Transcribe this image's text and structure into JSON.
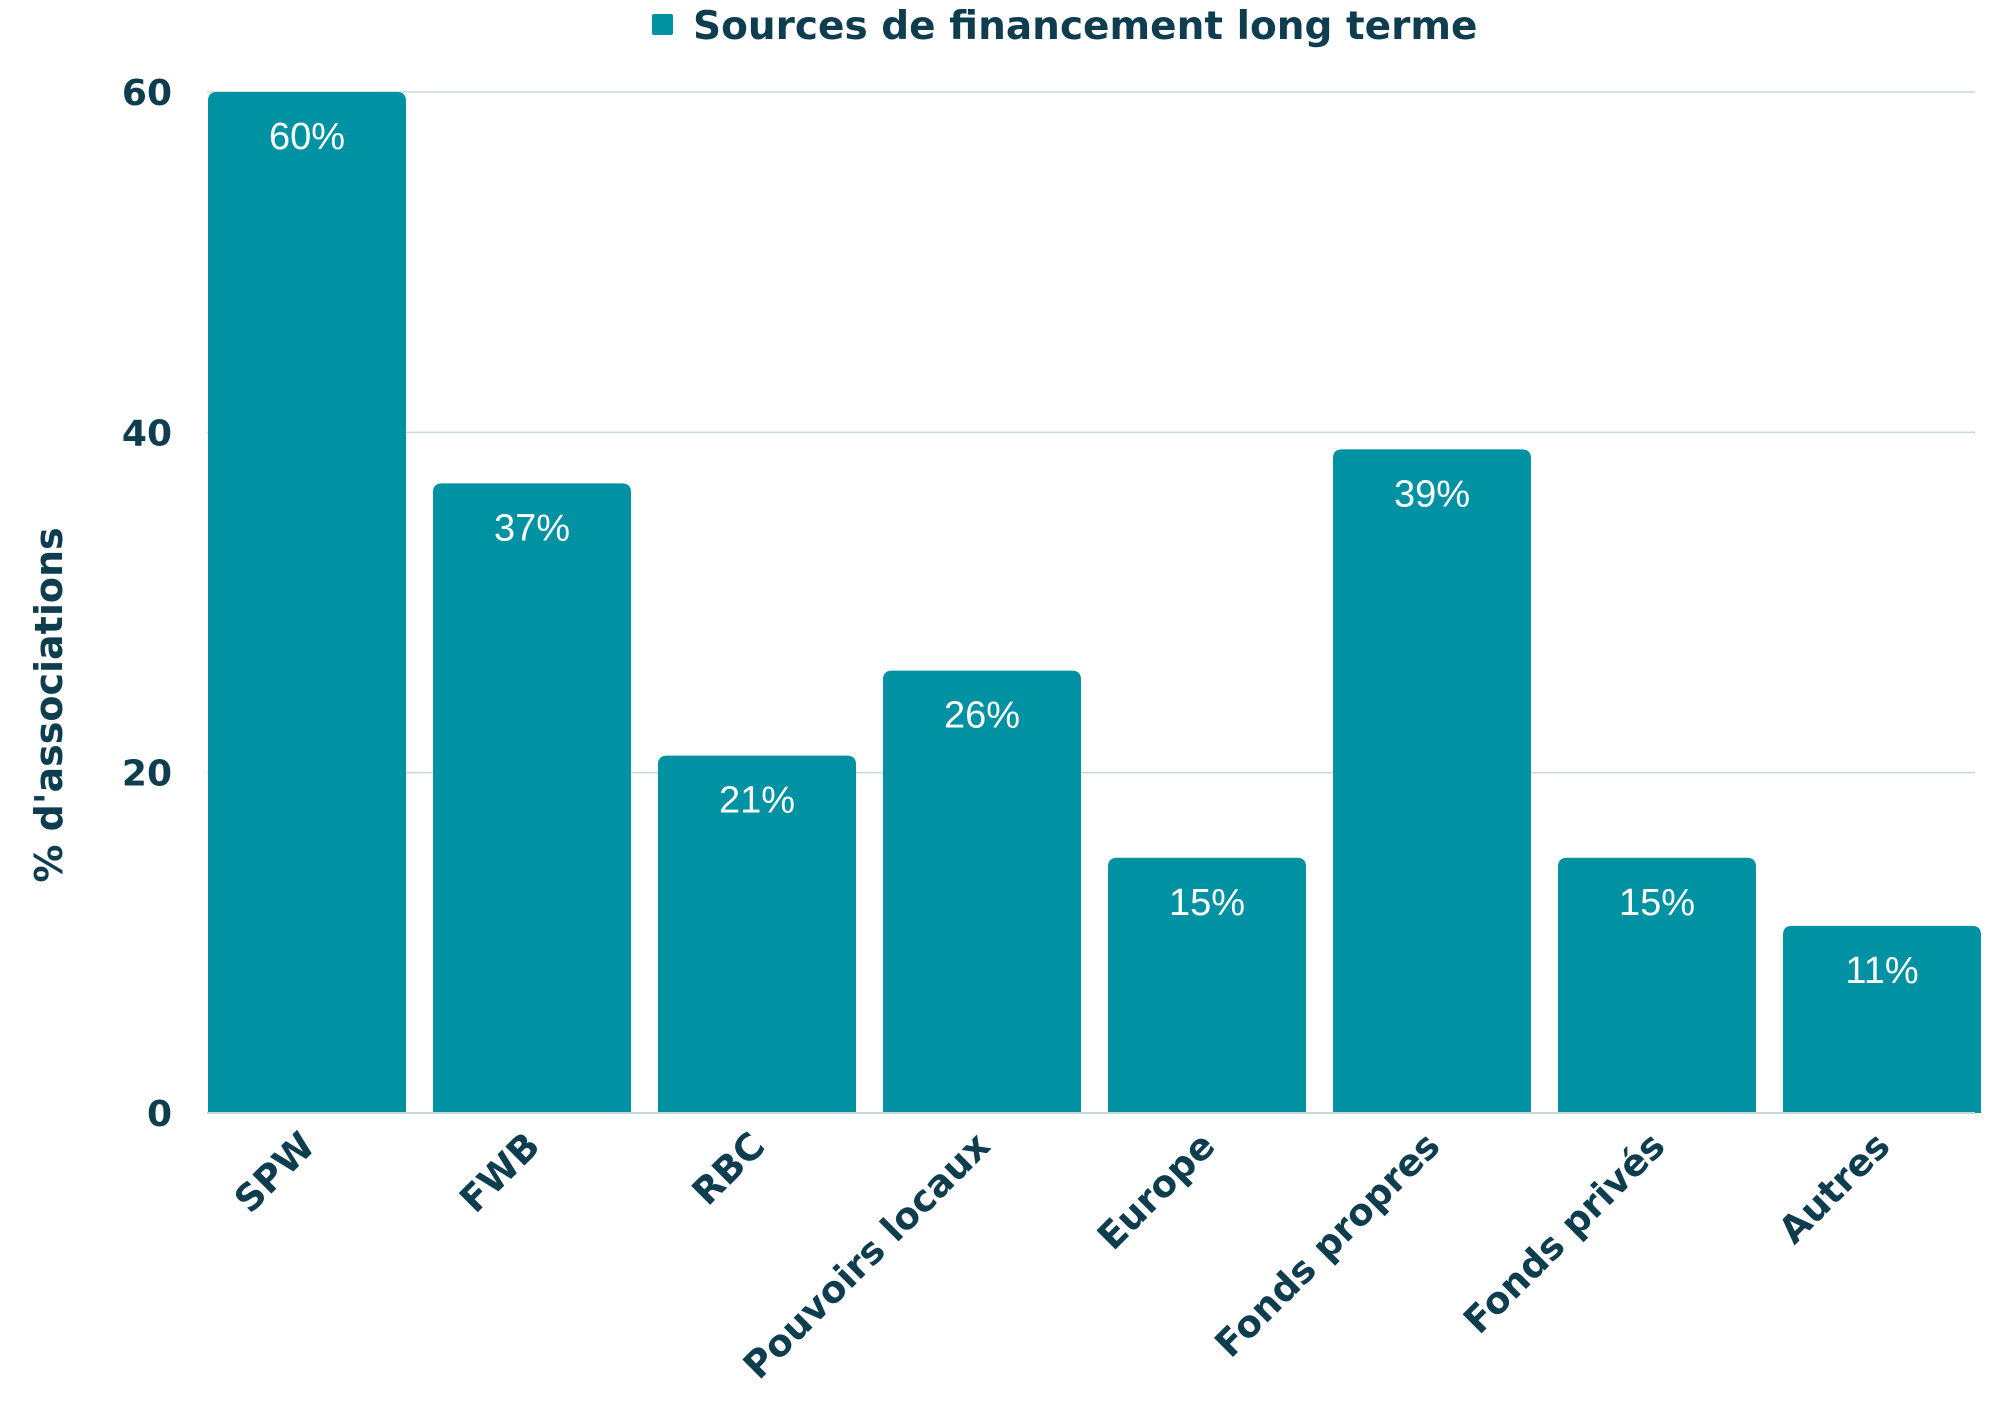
{
  "chart_data": {
    "type": "bar",
    "title": "",
    "legend": {
      "position": "top-center",
      "entries": [
        {
          "name": "Sources de financement long terme",
          "color": "#0091a3"
        }
      ]
    },
    "xlabel": "",
    "ylabel": "% d'associations",
    "ylim": [
      0,
      60
    ],
    "yticks": [
      0,
      20,
      40,
      60
    ],
    "grid": true,
    "categories": [
      "SPW",
      "FWB",
      "RBC",
      "Pouvoirs locaux",
      "Europe",
      "Fonds propres",
      "Fonds privés",
      "Autres"
    ],
    "series": [
      {
        "name": "Sources de financement long terme",
        "values": [
          60,
          37,
          21,
          26,
          15,
          39,
          15,
          11
        ],
        "labels": [
          "60%",
          "37%",
          "21%",
          "26%",
          "15%",
          "39%",
          "15%",
          "11%"
        ]
      }
    ],
    "colors": {
      "bar": "#0091a3",
      "text": "#0d3d4f",
      "grid": "#c6d8dc",
      "data_label": "#ffffff"
    }
  }
}
